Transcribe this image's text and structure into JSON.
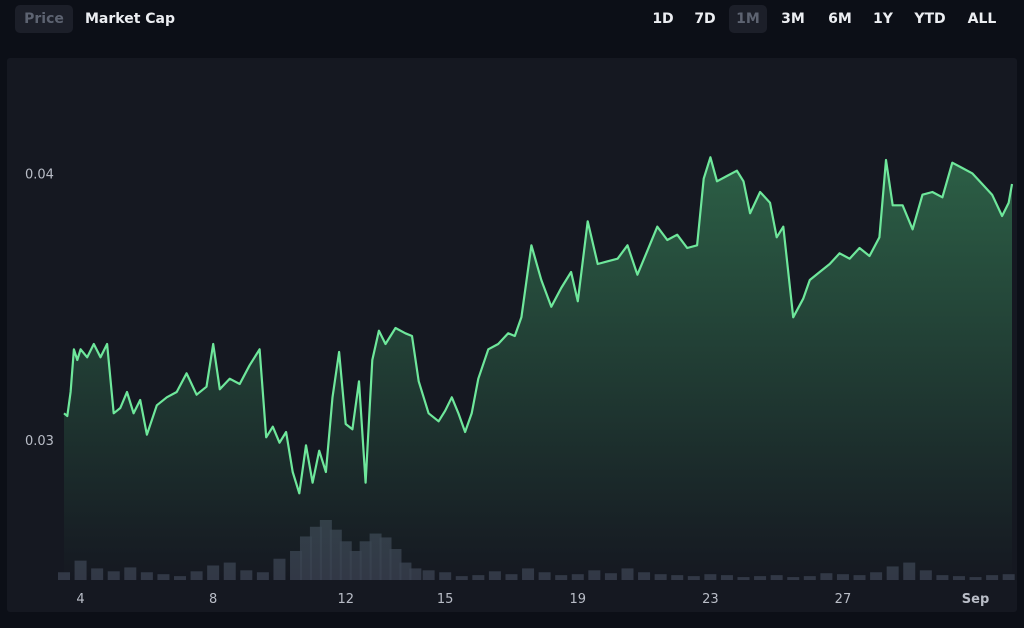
{
  "toggle": {
    "price_label": "Price",
    "market_cap_label": "Market Cap",
    "active": "Price"
  },
  "ranges": [
    {
      "label": "1D",
      "active": false
    },
    {
      "label": "7D",
      "active": false
    },
    {
      "label": "1M",
      "active": true
    },
    {
      "label": "3M",
      "active": false
    },
    {
      "label": "6M",
      "active": false
    },
    {
      "label": "1Y",
      "active": false
    },
    {
      "label": "YTD",
      "active": false
    },
    {
      "label": "ALL",
      "active": false
    }
  ],
  "colors": {
    "line": "#6ee79b",
    "fill_top": "#3f9a64",
    "background": "#0c0f17",
    "panel": "#151821",
    "volume": "#3a4150",
    "axis_text": "#b9bdc7"
  },
  "chart_data": {
    "type": "line",
    "title": "",
    "xlabel": "",
    "ylabel": "",
    "ylim": [
      0.02475,
      0.04425
    ],
    "y_ticks": [
      0.03,
      0.04
    ],
    "y_tick_labels": [
      "0.03",
      "0.04"
    ],
    "x_ticks": [
      4,
      8,
      12,
      15,
      19,
      23,
      27,
      31
    ],
    "x_tick_labels": [
      "4",
      "8",
      "12",
      "15",
      "19",
      "23",
      "27",
      "Sep"
    ],
    "xlim": [
      3.5,
      32.1
    ],
    "grid": false,
    "legend": "none",
    "series": [
      {
        "x": [
          3.5,
          3.6,
          3.7,
          3.8,
          3.9,
          4.0,
          4.2,
          4.4,
          4.6,
          4.8,
          5.0,
          5.2,
          5.4,
          5.6,
          5.8,
          6.0,
          6.3,
          6.6,
          6.9,
          7.2,
          7.5,
          7.8,
          8.0,
          8.2,
          8.5,
          8.8,
          9.1,
          9.4,
          9.6,
          9.8,
          10.0,
          10.2,
          10.4,
          10.6,
          10.8,
          11.0,
          11.2,
          11.4,
          11.6,
          11.8,
          12.0,
          12.2,
          12.4,
          12.6,
          12.8,
          13.0,
          13.2,
          13.5,
          13.8,
          14.0,
          14.2,
          14.5,
          14.8,
          15.0,
          15.2,
          15.4,
          15.6,
          15.8,
          16.0,
          16.3,
          16.6,
          16.9,
          17.1,
          17.3,
          17.6,
          17.9,
          18.2,
          18.5,
          18.8,
          19.0,
          19.3,
          19.6,
          19.9,
          20.2,
          20.5,
          20.8,
          21.1,
          21.4,
          21.7,
          22.0,
          22.3,
          22.6,
          22.8,
          23.0,
          23.2,
          23.5,
          23.8,
          24.0,
          24.2,
          24.5,
          24.8,
          25.0,
          25.2,
          25.5,
          25.8,
          26.0,
          26.3,
          26.6,
          26.9,
          27.2,
          27.5,
          27.8,
          28.1,
          28.3,
          28.5,
          28.8,
          29.1,
          29.4,
          29.7,
          30.0,
          30.3,
          30.6,
          30.9,
          31.2,
          31.5,
          31.8,
          32.0,
          32.1
        ],
        "values": [
          0.031,
          0.0309,
          0.0318,
          0.0334,
          0.033,
          0.0334,
          0.0331,
          0.0336,
          0.0331,
          0.0336,
          0.031,
          0.0312,
          0.0318,
          0.031,
          0.0315,
          0.0302,
          0.0313,
          0.0316,
          0.0318,
          0.0325,
          0.0317,
          0.032,
          0.0336,
          0.0319,
          0.0323,
          0.0321,
          0.0328,
          0.0334,
          0.0301,
          0.0305,
          0.0299,
          0.0303,
          0.0288,
          0.028,
          0.0298,
          0.0284,
          0.0296,
          0.0288,
          0.0316,
          0.0333,
          0.0306,
          0.0304,
          0.0322,
          0.0284,
          0.033,
          0.0341,
          0.0336,
          0.0342,
          0.034,
          0.0339,
          0.0322,
          0.031,
          0.0307,
          0.0311,
          0.0316,
          0.031,
          0.0303,
          0.031,
          0.0323,
          0.0334,
          0.0336,
          0.034,
          0.0339,
          0.0346,
          0.0373,
          0.036,
          0.035,
          0.0357,
          0.0363,
          0.0352,
          0.0382,
          0.0366,
          0.0367,
          0.0368,
          0.0373,
          0.0362,
          0.0371,
          0.038,
          0.0375,
          0.0377,
          0.0372,
          0.0373,
          0.0398,
          0.0406,
          0.0397,
          0.0399,
          0.0401,
          0.0397,
          0.0385,
          0.0393,
          0.0389,
          0.0376,
          0.038,
          0.0346,
          0.0353,
          0.036,
          0.0363,
          0.0366,
          0.037,
          0.0368,
          0.0372,
          0.0369,
          0.0376,
          0.0405,
          0.0388,
          0.0388,
          0.0379,
          0.0392,
          0.0393,
          0.0391,
          0.0404,
          0.0402,
          0.04,
          0.0396,
          0.0392,
          0.0384,
          0.0389,
          0.0396
        ]
      }
    ],
    "volume": {
      "x": [
        3.5,
        4.0,
        4.5,
        5.0,
        5.5,
        6.0,
        6.5,
        7.0,
        7.5,
        8.0,
        8.5,
        9.0,
        9.5,
        10.0,
        10.5,
        10.8,
        11.1,
        11.4,
        11.7,
        12.0,
        12.3,
        12.6,
        12.9,
        13.2,
        13.5,
        13.8,
        14.1,
        14.5,
        15.0,
        15.5,
        16.0,
        16.5,
        17.0,
        17.5,
        18.0,
        18.5,
        19.0,
        19.5,
        20.0,
        20.5,
        21.0,
        21.5,
        22.0,
        22.5,
        23.0,
        23.5,
        24.0,
        24.5,
        25.0,
        25.5,
        26.0,
        26.5,
        27.0,
        27.5,
        28.0,
        28.5,
        29.0,
        29.5,
        30.0,
        30.5,
        31.0,
        31.5,
        32.0
      ],
      "values": [
        8,
        20,
        12,
        9,
        13,
        8,
        6,
        4,
        9,
        15,
        18,
        10,
        8,
        22,
        30,
        45,
        55,
        62,
        52,
        40,
        30,
        40,
        48,
        44,
        32,
        18,
        12,
        10,
        8,
        4,
        5,
        9,
        6,
        12,
        8,
        5,
        6,
        10,
        7,
        12,
        8,
        6,
        5,
        4,
        6,
        5,
        3,
        4,
        5,
        3,
        4,
        7,
        6,
        5,
        8,
        14,
        18,
        10,
        5,
        4,
        3,
        5,
        6
      ]
    }
  }
}
